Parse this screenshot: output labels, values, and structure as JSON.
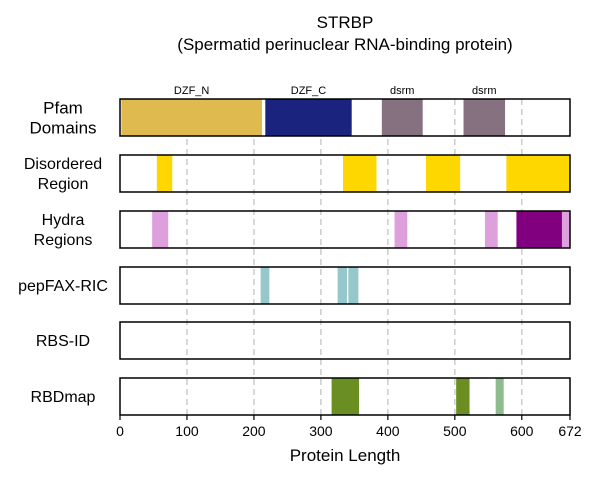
{
  "chart_data": {
    "type": "table",
    "title": "STRBP",
    "subtitle": "(Spermatid perinuclear RNA-binding protein)",
    "xlabel": "Protein Length",
    "xlim": [
      0,
      672
    ],
    "xticks": [
      0,
      100,
      200,
      300,
      400,
      500,
      600,
      672
    ],
    "gridlines": [
      100,
      200,
      300,
      400,
      500,
      600
    ],
    "tracks": [
      {
        "label": [
          "Pfam",
          "Domains"
        ],
        "segments": [
          {
            "start": 2,
            "end": 212,
            "color": "#DFBA4E",
            "label": "DZF_N"
          },
          {
            "start": 217,
            "end": 346,
            "color": "#1A237E",
            "label": "DZF_C"
          },
          {
            "start": 391,
            "end": 452,
            "color": "#85717F",
            "label": "dsrm"
          },
          {
            "start": 513,
            "end": 575,
            "color": "#85717F",
            "label": "dsrm"
          }
        ]
      },
      {
        "label": [
          "Disordered",
          "Region"
        ],
        "segments": [
          {
            "start": 55,
            "end": 78,
            "color": "#FFD700"
          },
          {
            "start": 333,
            "end": 383,
            "color": "#FFD700"
          },
          {
            "start": 457,
            "end": 508,
            "color": "#FFD700"
          },
          {
            "start": 577,
            "end": 672,
            "color": "#FFD700"
          }
        ]
      },
      {
        "label": [
          "Hydra",
          "Regions"
        ],
        "segments": [
          {
            "start": 48,
            "end": 72,
            "color": "#DDA0DD"
          },
          {
            "start": 410,
            "end": 429,
            "color": "#DDA0DD"
          },
          {
            "start": 545,
            "end": 564,
            "color": "#DDA0DD"
          },
          {
            "start": 592,
            "end": 660,
            "color": "#800080"
          },
          {
            "start": 660,
            "end": 672,
            "color": "#DDA0DD"
          }
        ]
      },
      {
        "label": [
          "pepFAX-RIC"
        ],
        "segments": [
          {
            "start": 210,
            "end": 223,
            "color": "#96C7CA"
          },
          {
            "start": 325,
            "end": 339,
            "color": "#96C7CA"
          },
          {
            "start": 341,
            "end": 356,
            "color": "#96C7CA"
          }
        ]
      },
      {
        "label": [
          "RBS-ID"
        ],
        "segments": []
      },
      {
        "label": [
          "RBDmap"
        ],
        "segments": [
          {
            "start": 316,
            "end": 357,
            "color": "#6B8E23"
          },
          {
            "start": 502,
            "end": 522,
            "color": "#6B8E23"
          },
          {
            "start": 561,
            "end": 573,
            "color": "#8FBC8F"
          }
        ]
      }
    ]
  }
}
